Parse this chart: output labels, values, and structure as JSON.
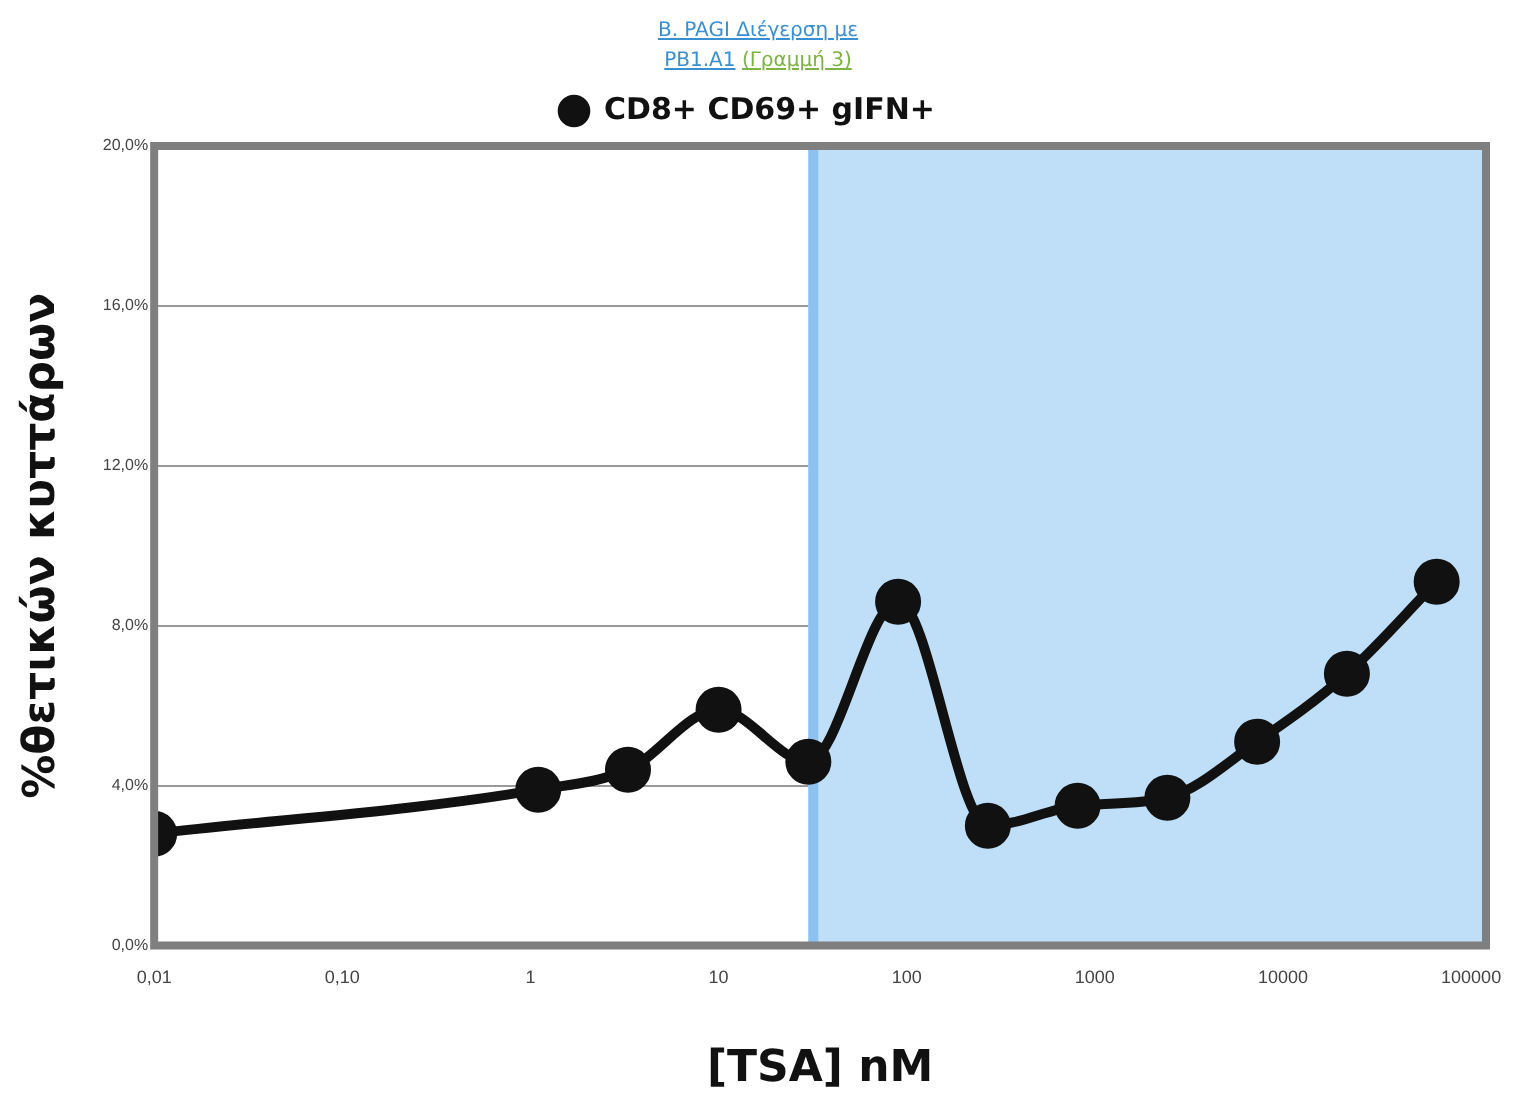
{
  "chart_data": {
    "type": "line",
    "title": "B. PAGI Διέγερση με PB1.A1",
    "subtitle": "(Γραμμή 3)",
    "xlabel": "[TSA] nM",
    "ylabel": "%θετικών κυττάρων",
    "x": [
      0.01,
      1.1,
      3.3,
      10,
      30,
      90,
      270,
      810,
      2430,
      7290,
      21870,
      65610
    ],
    "series": [
      {
        "name": "CD8+ CD69+ gIFN+",
        "color": "#111111",
        "values": [
          2.8,
          3.9,
          4.4,
          5.9,
          4.6,
          8.6,
          3.0,
          3.5,
          3.7,
          5.1,
          6.8,
          9.1
        ]
      }
    ],
    "log": "x",
    "xlim": [
      0.01,
      120000
    ],
    "xticks": [
      {
        "value": 0.01,
        "label": "0,01"
      },
      {
        "value": 0.1,
        "label": "0,10"
      },
      1,
      10,
      100,
      1000,
      10000,
      100000
    ],
    "ylim": [
      0,
      20
    ],
    "yticks": [
      {
        "value": 0,
        "label": "0,0%"
      },
      {
        "value": 4,
        "label": "4,0%"
      },
      {
        "value": 8,
        "label": "8,0%"
      },
      {
        "value": 12,
        "label": "12,0%"
      },
      {
        "value": 16,
        "label": "16,0%"
      },
      {
        "value": 20,
        "label": "20,0%"
      }
    ],
    "bands": [
      {
        "axis": "x",
        "from": 30,
        "to": 120000,
        "color": "#bfdff9"
      }
    ],
    "ref_lines": [
      {
        "axis": "x",
        "value": 30,
        "color": "#8ec2ee"
      }
    ],
    "grid": "y",
    "legend": "top",
    "marker": "circle",
    "line_style": "solid"
  }
}
